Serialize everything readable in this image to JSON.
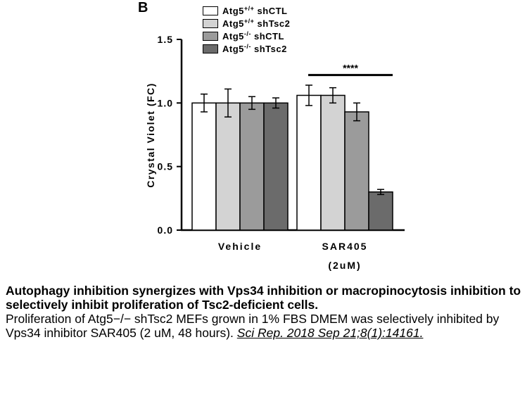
{
  "panel_label": "B",
  "legend": [
    {
      "base": "Atg5",
      "sup": "+/+",
      "rest": " shCTL",
      "color": "#ffffff"
    },
    {
      "base": "Atg5",
      "sup": "+/+",
      "rest": " shTsc2",
      "color": "#d3d3d3"
    },
    {
      "base": "Atg5",
      "sup": "-/-",
      "rest": " shCTL",
      "color": "#9b9b9b"
    },
    {
      "base": "Atg5",
      "sup": "-/-",
      "rest": " shTsc2",
      "color": "#6b6b6b"
    }
  ],
  "chart_data": {
    "type": "bar",
    "ylabel": "Crystal Violet (FC)",
    "ylim": [
      0,
      1.5
    ],
    "yticks": [
      "0.0",
      "0.5",
      "1.0",
      "1.5"
    ],
    "categories": [
      {
        "lines": [
          "Vehicle"
        ]
      },
      {
        "lines": [
          "SAR405",
          "(2uM)"
        ]
      }
    ],
    "series": [
      {
        "name": "Atg5+/+ shCTL",
        "color": "#ffffff",
        "values": [
          1.0,
          1.06
        ],
        "errors": [
          0.07,
          0.08
        ]
      },
      {
        "name": "Atg5+/+ shTsc2",
        "color": "#d3d3d3",
        "values": [
          1.0,
          1.06
        ],
        "errors": [
          0.11,
          0.06
        ]
      },
      {
        "name": "Atg5-/- shCTL",
        "color": "#9b9b9b",
        "values": [
          1.0,
          0.93
        ],
        "errors": [
          0.05,
          0.07
        ]
      },
      {
        "name": "Atg5-/- shTsc2",
        "color": "#6b6b6b",
        "values": [
          1.0,
          0.3
        ],
        "errors": [
          0.04,
          0.02
        ]
      }
    ],
    "significance": {
      "label": "****",
      "category": 1,
      "from_series": 0,
      "to_series": 3,
      "y": 1.22
    },
    "grid": false,
    "legend_position": "top-right"
  },
  "caption": {
    "title": "Autophagy inhibition synergizes with Vps34 inhibition or macropinocytosis inhibition to selectively inhibit proliferation of Tsc2-deficient cells.",
    "body": "Proliferation of Atg5−/− shTsc2 MEFs grown in 1% FBS DMEM was selectively inhibited by Vps34 inhibitor SAR405 (2 uM, 48 hours). ",
    "citation": "Sci Rep. 2018 Sep 21;8(1):14161."
  }
}
